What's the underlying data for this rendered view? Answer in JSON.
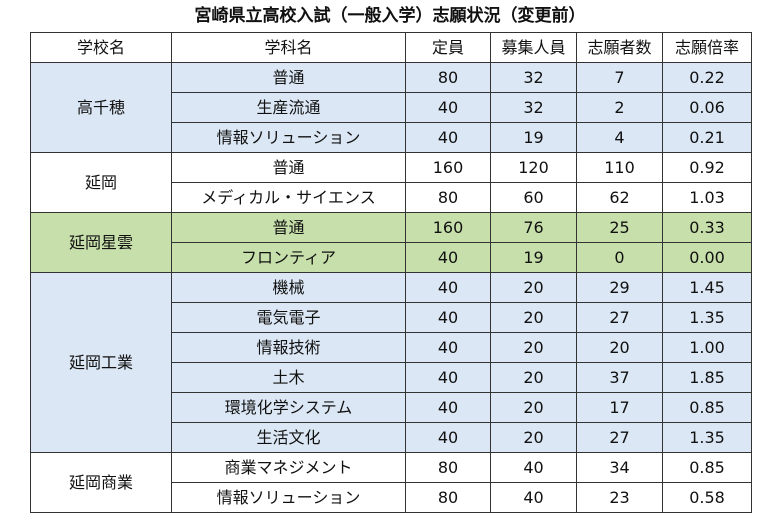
{
  "title": "宮崎県立高校入試（一般入学）志願状況（変更前）",
  "headers": [
    "学校名",
    "学科名",
    "定員",
    "募集人員",
    "志願者数",
    "志願倍率"
  ],
  "colors": {
    "blue": "#dbe7f4",
    "white": "#ffffff",
    "green": "#c7dfaa",
    "border": "#333333"
  },
  "schools": [
    {
      "name": "高千穂",
      "color": "blue",
      "rows": [
        [
          "普通",
          "80",
          "32",
          "7",
          "0.22"
        ],
        [
          "生産流通",
          "40",
          "32",
          "2",
          "0.06"
        ],
        [
          "情報ソリューション",
          "40",
          "19",
          "4",
          "0.21"
        ]
      ]
    },
    {
      "name": "延岡",
      "color": "white",
      "rows": [
        [
          "普通",
          "160",
          "120",
          "110",
          "0.92"
        ],
        [
          "メディカル・サイエンス",
          "80",
          "60",
          "62",
          "1.03"
        ]
      ]
    },
    {
      "name": "延岡星雲",
      "color": "green",
      "rows": [
        [
          "普通",
          "160",
          "76",
          "25",
          "0.33"
        ],
        [
          "フロンティア",
          "40",
          "19",
          "0",
          "0.00"
        ]
      ]
    },
    {
      "name": "延岡工業",
      "color": "blue",
      "rows": [
        [
          "機械",
          "40",
          "20",
          "29",
          "1.45"
        ],
        [
          "電気電子",
          "40",
          "20",
          "27",
          "1.35"
        ],
        [
          "情報技術",
          "40",
          "20",
          "20",
          "1.00"
        ],
        [
          "土木",
          "40",
          "20",
          "37",
          "1.85"
        ],
        [
          "環境化学システム",
          "40",
          "20",
          "17",
          "0.85"
        ],
        [
          "生活文化",
          "40",
          "20",
          "27",
          "1.35"
        ]
      ]
    },
    {
      "name": "延岡商業",
      "color": "white",
      "rows": [
        [
          "商業マネジメント",
          "80",
          "40",
          "34",
          "0.85"
        ],
        [
          "情報ソリューション",
          "80",
          "40",
          "23",
          "0.58"
        ]
      ]
    }
  ]
}
